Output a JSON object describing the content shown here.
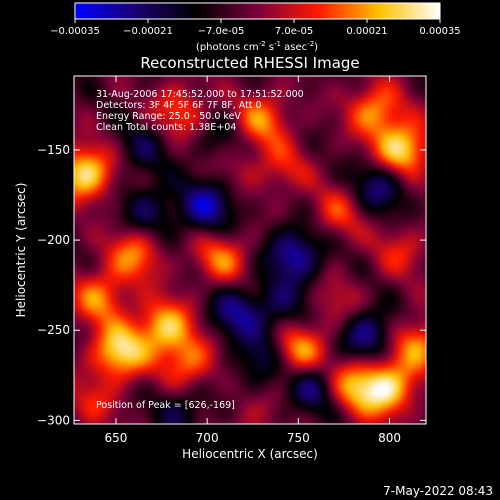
{
  "chart_data": {
    "type": "heatmap",
    "title": "Reconstructed RHESSI Image",
    "xlabel": "Heliocentric X (arcsec)",
    "ylabel": "Heliocentric Y (arcsec)",
    "xlim": [
      627,
      820
    ],
    "ylim": [
      -302,
      -109
    ],
    "xticks": [
      650,
      700,
      750,
      800
    ],
    "yticks": [
      -300,
      -250,
      -200,
      -150
    ],
    "grid": false,
    "colorbar": {
      "position": "top",
      "range": [
        -0.00035,
        0.00035
      ],
      "tick_labels": [
        "-0.00035",
        "-0.00021",
        "-7.0e-05",
        "7.0e-05",
        "0.00021",
        "0.00035"
      ],
      "label_parts": {
        "p1": "(photons cm",
        "e1": "-2",
        "p2": " s",
        "e2": "-1",
        "p3": " asec",
        "e3": "-2",
        "p4": ")"
      },
      "colors": [
        "#0000ff",
        "#1a0070",
        "#000000",
        "#7a003a",
        "#ff1a00",
        "#ffc000",
        "#ffffff"
      ]
    },
    "annotations": [
      "31-Aug-2006 17:45:52.000 to 17:51:52.000",
      "Detectors: 3F 4F 5F 6F 7F 8F, Att 0",
      "Energy Range: 25.0 - 50.0 keV",
      "Clean    Total counts: 1.38E+04"
    ],
    "peak_label": "Position of Peak = [626,-169]",
    "timestamp": "7-May-2022 08:43",
    "hotspots": [
      {
        "x": 633,
        "y": -163,
        "v": 0.00034
      },
      {
        "x": 652,
        "y": -262,
        "v": 0.00033
      },
      {
        "x": 641,
        "y": -232,
        "v": 0.00022
      },
      {
        "x": 677,
        "y": -248,
        "v": 0.00029
      },
      {
        "x": 690,
        "y": -268,
        "v": 0.00021
      },
      {
        "x": 660,
        "y": -208,
        "v": 0.00022
      },
      {
        "x": 685,
        "y": -128,
        "v": 0.00018
      },
      {
        "x": 730,
        "y": -133,
        "v": 0.00022
      },
      {
        "x": 792,
        "y": -128,
        "v": 0.00024
      },
      {
        "x": 807,
        "y": -150,
        "v": 0.00034
      },
      {
        "x": 798,
        "y": -283,
        "v": 0.00034
      },
      {
        "x": 815,
        "y": -258,
        "v": 0.00024
      },
      {
        "x": 750,
        "y": -262,
        "v": 0.00027
      },
      {
        "x": 779,
        "y": -280,
        "v": 0.00024
      },
      {
        "x": 708,
        "y": -210,
        "v": 0.00021
      },
      {
        "x": 772,
        "y": -185,
        "v": 0.00015
      },
      {
        "x": 742,
        "y": -160,
        "v": 0.00013
      },
      {
        "x": 770,
        "y": -236,
        "v": 0.00011
      },
      {
        "x": 637,
        "y": -290,
        "v": 0.00012
      },
      {
        "x": 715,
        "y": -157,
        "v": 0.0001
      },
      {
        "x": 724,
        "y": -298,
        "v": 8e-05
      },
      {
        "x": 806,
        "y": -206,
        "v": 0.00013
      },
      {
        "x": 700,
        "y": -181,
        "v": -0.00024
      },
      {
        "x": 748,
        "y": -208,
        "v": -0.00025
      },
      {
        "x": 716,
        "y": -240,
        "v": -0.0002
      },
      {
        "x": 759,
        "y": -281,
        "v": -0.00021
      },
      {
        "x": 788,
        "y": -253,
        "v": -0.00023
      },
      {
        "x": 795,
        "y": -170,
        "v": -0.0002
      },
      {
        "x": 668,
        "y": -184,
        "v": -0.00015
      },
      {
        "x": 686,
        "y": -295,
        "v": -0.00013
      },
      {
        "x": 730,
        "y": -266,
        "v": -0.00016
      },
      {
        "x": 665,
        "y": -149,
        "v": -0.00012
      },
      {
        "x": 742,
        "y": -237,
        "v": -0.00014
      },
      {
        "x": 710,
        "y": -145,
        "v": -0.00011
      }
    ]
  }
}
